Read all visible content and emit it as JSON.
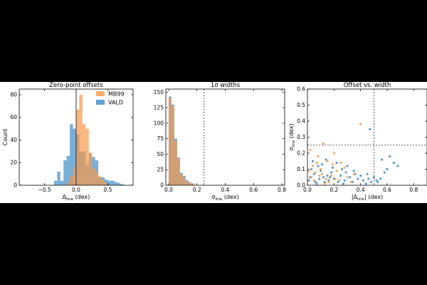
{
  "figure": {
    "background": "#ffffff",
    "page_background": "#000000"
  },
  "colors": {
    "mb99": "#f7994a",
    "vald": "#3f8cc8",
    "overlap": "#5f6a7a"
  },
  "legend_labels": [
    "MB99",
    "VALD"
  ],
  "chart_data": [
    {
      "type": "histogram",
      "title": "Zero-point offsets",
      "xlabel_main": "Δ",
      "xlabel_sub": "line",
      "xlabel_unit": " (dex)",
      "ylabel": "Count",
      "xlim": [
        -0.9,
        0.9
      ],
      "ylim": [
        0,
        85
      ],
      "xticks": [
        -0.5,
        0.0,
        0.5
      ],
      "xtick_labels": [
        "−0.5",
        "0.0",
        "0.5"
      ],
      "yticks": [
        0,
        20,
        40,
        60,
        80
      ],
      "bin_edges": [
        -0.35,
        -0.3,
        -0.25,
        -0.2,
        -0.15,
        -0.1,
        -0.05,
        0.0,
        0.05,
        0.1,
        0.15,
        0.2,
        0.25,
        0.3,
        0.35,
        0.4,
        0.45,
        0.5,
        0.55,
        0.6,
        0.65,
        0.7,
        0.75
      ],
      "reference_line_x": 0.0,
      "series": [
        {
          "name": "VALD",
          "values": [
            4,
            12,
            4,
            22,
            26,
            54,
            50,
            45,
            30,
            30,
            18,
            28,
            25,
            22,
            7,
            7,
            5,
            4,
            4,
            3,
            2,
            1
          ]
        },
        {
          "name": "MB99",
          "values": [
            0,
            0,
            0,
            0,
            2,
            8,
            16,
            67,
            80,
            54,
            50,
            29,
            15,
            12,
            8,
            5,
            2,
            0,
            0,
            0,
            0,
            0
          ]
        }
      ],
      "legend": [
        "MB99",
        "VALD"
      ]
    },
    {
      "type": "histogram",
      "title": "1σ widths",
      "xlabel_main": "σ",
      "xlabel_sub": "line",
      "xlabel_unit": " (dex)",
      "xlim": [
        -0.02,
        0.82
      ],
      "ylim": [
        0,
        155
      ],
      "xticks": [
        0.0,
        0.2,
        0.4,
        0.6,
        0.8
      ],
      "xtick_labels": [
        "0.0",
        "0.2",
        "0.4",
        "0.6",
        "0.8"
      ],
      "yticks": [
        0,
        25,
        50,
        75,
        100,
        125,
        150
      ],
      "bin_edges": [
        0.0,
        0.02,
        0.04,
        0.06,
        0.08,
        0.1,
        0.12,
        0.14,
        0.16,
        0.18
      ],
      "reference_line_x": 0.25,
      "series": [
        {
          "name": "VALD",
          "values": [
            143,
            130,
            75,
            45,
            20,
            15,
            8,
            5,
            3
          ]
        },
        {
          "name": "MB99",
          "values": [
            141,
            128,
            72,
            43,
            18,
            13,
            6,
            4,
            2
          ]
        }
      ]
    },
    {
      "type": "scatter",
      "title": "Offset vs. width",
      "xlabel_main": "|Δ",
      "xlabel_sub": "line",
      "xlabel_unit": "| (dex)",
      "ylabel_main": "σ",
      "ylabel_sub": "line",
      "ylabel_unit": " (dex)",
      "xlim": [
        0.0,
        0.9
      ],
      "ylim": [
        0.0,
        0.6
      ],
      "xticks": [
        0.0,
        0.2,
        0.4,
        0.6,
        0.8
      ],
      "xtick_labels": [
        "0.0",
        "0.2",
        "0.4",
        "0.6",
        "0.8"
      ],
      "yticks": [
        0.0,
        0.1,
        0.2,
        0.3,
        0.4,
        0.5,
        0.6
      ],
      "ytick_labels": [
        "0.0",
        "0.1",
        "0.2",
        "0.3",
        "0.4",
        "0.5",
        "0.6"
      ],
      "reference_line_x": 0.5,
      "reference_line_y": 0.25,
      "series": [
        {
          "name": "VALD",
          "points": [
            [
              0.47,
              0.35
            ],
            [
              0.62,
              0.18
            ],
            [
              0.56,
              0.16
            ],
            [
              0.65,
              0.14
            ],
            [
              0.68,
              0.12
            ],
            [
              0.6,
              0.1
            ],
            [
              0.58,
              0.08
            ],
            [
              0.45,
              0.07
            ],
            [
              0.35,
              0.09
            ],
            [
              0.3,
              0.12
            ],
            [
              0.26,
              0.1
            ],
            [
              0.22,
              0.14
            ],
            [
              0.18,
              0.08
            ],
            [
              0.14,
              0.16
            ],
            [
              0.1,
              0.09
            ],
            [
              0.08,
              0.12
            ],
            [
              0.05,
              0.07
            ],
            [
              0.02,
              0.05
            ],
            [
              0.03,
              0.1
            ],
            [
              0.12,
              0.05
            ],
            [
              0.2,
              0.04
            ],
            [
              0.25,
              0.06
            ],
            [
              0.32,
              0.05
            ],
            [
              0.38,
              0.04
            ],
            [
              0.42,
              0.03
            ],
            [
              0.5,
              0.05
            ],
            [
              0.52,
              0.03
            ],
            [
              0.55,
              0.04
            ],
            [
              0.48,
              0.02
            ],
            [
              0.4,
              0.06
            ],
            [
              0.28,
              0.03
            ],
            [
              0.16,
              0.03
            ],
            [
              0.06,
              0.02
            ],
            [
              0.01,
              0.03
            ],
            [
              0.09,
              0.04
            ],
            [
              0.23,
              0.02
            ],
            [
              0.34,
              0.02
            ],
            [
              0.44,
              0.01
            ],
            [
              0.15,
              0.06
            ],
            [
              0.19,
              0.11
            ],
            [
              0.11,
              0.13
            ],
            [
              0.04,
              0.15
            ],
            [
              0.07,
              0.01
            ],
            [
              0.13,
              0.02
            ],
            [
              0.27,
              0.01
            ],
            [
              0.36,
              0.07
            ],
            [
              0.46,
              0.04
            ],
            [
              0.53,
              0.02
            ],
            [
              0.29,
              0.08
            ],
            [
              0.17,
              0.05
            ]
          ]
        },
        {
          "name": "MB99",
          "points": [
            [
              0.4,
              0.38
            ],
            [
              0.12,
              0.26
            ],
            [
              0.02,
              0.22
            ],
            [
              0.08,
              0.18
            ],
            [
              0.15,
              0.15
            ],
            [
              0.04,
              0.12
            ],
            [
              0.2,
              0.2
            ],
            [
              0.25,
              0.14
            ],
            [
              0.1,
              0.1
            ],
            [
              0.06,
              0.08
            ],
            [
              0.18,
              0.06
            ],
            [
              0.22,
              0.09
            ],
            [
              0.14,
              0.04
            ],
            [
              0.3,
              0.05
            ],
            [
              0.35,
              0.07
            ],
            [
              0.28,
              0.11
            ],
            [
              0.03,
              0.05
            ],
            [
              0.09,
              0.06
            ],
            [
              0.16,
              0.02
            ],
            [
              0.24,
              0.03
            ],
            [
              0.05,
              0.03
            ],
            [
              0.11,
              0.07
            ],
            [
              0.19,
              0.13
            ],
            [
              0.33,
              0.02
            ],
            [
              0.01,
              0.09
            ],
            [
              0.07,
              0.14
            ],
            [
              0.13,
              0.01
            ],
            [
              0.21,
              0.04
            ]
          ]
        }
      ]
    }
  ]
}
